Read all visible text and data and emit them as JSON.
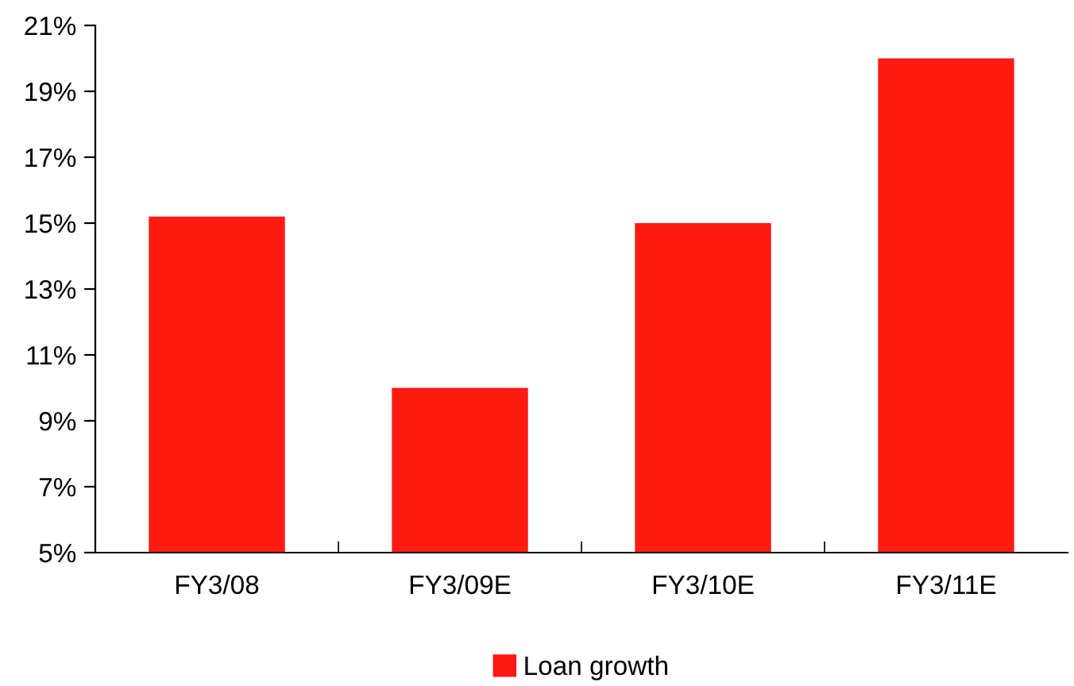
{
  "chart_data": {
    "type": "bar",
    "categories": [
      "FY3/08",
      "FY3/09E",
      "FY3/10E",
      "FY3/11E"
    ],
    "series": [
      {
        "name": "Loan growth",
        "color": "#ff1a12",
        "values": [
          15.2,
          10.0,
          15.0,
          20.0
        ]
      }
    ],
    "ylim": [
      5,
      21
    ],
    "yticks": [
      {
        "value": 5,
        "label": "5%"
      },
      {
        "value": 7,
        "label": "7%"
      },
      {
        "value": 9,
        "label": "9%"
      },
      {
        "value": 11,
        "label": "11%"
      },
      {
        "value": 13,
        "label": "13%"
      },
      {
        "value": 15,
        "label": "15%"
      },
      {
        "value": 17,
        "label": "17%"
      },
      {
        "value": 19,
        "label": "19%"
      },
      {
        "value": 21,
        "label": "21%"
      }
    ],
    "grid": false,
    "legend": "bottom"
  }
}
